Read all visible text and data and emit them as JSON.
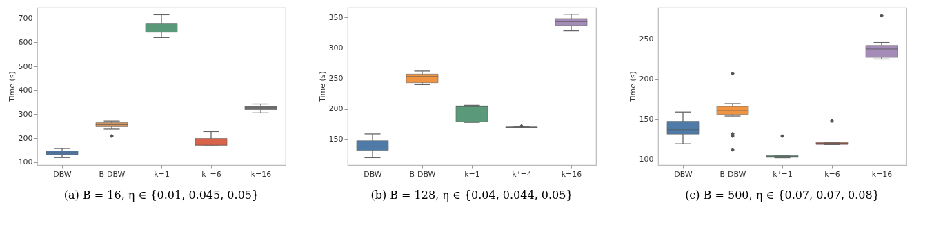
{
  "chart_data": [
    {
      "type": "box",
      "title": "(a) B = 16, η ∈ {0.01, 0.045, 0.05}",
      "ylabel": "Time (s)",
      "categories": [
        "DBW",
        "B-DBW",
        "k=1",
        "k⁺=6",
        "k=16"
      ],
      "colors": [
        "#4f76a0",
        "#d9965f",
        "#5a9a7a",
        "#d9634a",
        "#6e6e6e"
      ],
      "ylim": [
        88,
        745
      ],
      "yticks": [
        100,
        200,
        300,
        400,
        500,
        600,
        700
      ],
      "grid": false,
      "boxes": [
        {
          "low": 119,
          "q1": 131,
          "median": 139,
          "q3": 147,
          "high": 157
        },
        {
          "low": 238,
          "q1": 248,
          "median": 257,
          "q3": 265,
          "high": 272,
          "outliers": [
            209
          ]
        },
        {
          "low": 620,
          "q1": 642,
          "median": 660,
          "q3": 677,
          "high": 715
        },
        {
          "low": 168,
          "q1": 170,
          "median": 175,
          "q3": 199,
          "high": 228
        },
        {
          "low": 306,
          "q1": 319,
          "median": 326,
          "q3": 334,
          "high": 343
        }
      ]
    },
    {
      "type": "box",
      "title": "(b) B = 128, η ∈ {0.04, 0.044, 0.05}",
      "ylabel": "Time (s)",
      "categories": [
        "DBW",
        "B-DBW",
        "k=1",
        "k⁺=4",
        "k=16"
      ],
      "colors": [
        "#4f7ba8",
        "#ef9442",
        "#5a9a7a",
        "#6e6e6e",
        "#a58cb8"
      ],
      "ylim": [
        108,
        366
      ],
      "yticks": [
        150,
        200,
        250,
        300,
        350
      ],
      "grid": false,
      "boxes": [
        {
          "low": 120,
          "q1": 132,
          "median": 139,
          "q3": 148,
          "high": 159
        },
        {
          "low": 240,
          "q1": 243,
          "median": 253,
          "q3": 257,
          "high": 262
        },
        {
          "low": 178,
          "q1": 179,
          "median": 204,
          "q3": 205,
          "high": 206
        },
        {
          "low": 169,
          "q1": 169.5,
          "median": 170,
          "q3": 170.5,
          "high": 171,
          "outliers": [
            172
          ]
        },
        {
          "low": 328,
          "q1": 337,
          "median": 343,
          "q3": 348,
          "high": 355
        }
      ]
    },
    {
      "type": "box",
      "title": "(c) B = 500, η ∈ {0.07, 0.07, 0.08}",
      "ylabel": "Time (s)",
      "categories": [
        "DBW",
        "B-DBW",
        "k⁺=1",
        "k=6",
        "k=16"
      ],
      "colors": [
        "#4f7ba8",
        "#ef9442",
        "#5a9a7a",
        "#d9634a",
        "#a58cb8"
      ],
      "ylim": [
        93,
        289
      ],
      "yticks": [
        100,
        150,
        200,
        250
      ],
      "grid": false,
      "boxes": [
        {
          "low": 119.5,
          "q1": 131.5,
          "median": 137,
          "q3": 147.5,
          "high": 159
        },
        {
          "low": 154,
          "q1": 156,
          "median": 161,
          "q3": 166,
          "high": 169.5,
          "outliers": [
            206.8,
            132,
            129,
            112
          ]
        },
        {
          "low": 102,
          "q1": 102.5,
          "median": 103.5,
          "q3": 104.8,
          "high": 105,
          "outliers": [
            129
          ]
        },
        {
          "low": 118.5,
          "q1": 118.6,
          "median": 120,
          "q3": 121.2,
          "high": 121.3,
          "outliers": [
            148
          ]
        },
        {
          "low": 225,
          "q1": 227,
          "median": 237.5,
          "q3": 242,
          "high": 245.5,
          "outliers": [
            279
          ]
        }
      ]
    }
  ]
}
